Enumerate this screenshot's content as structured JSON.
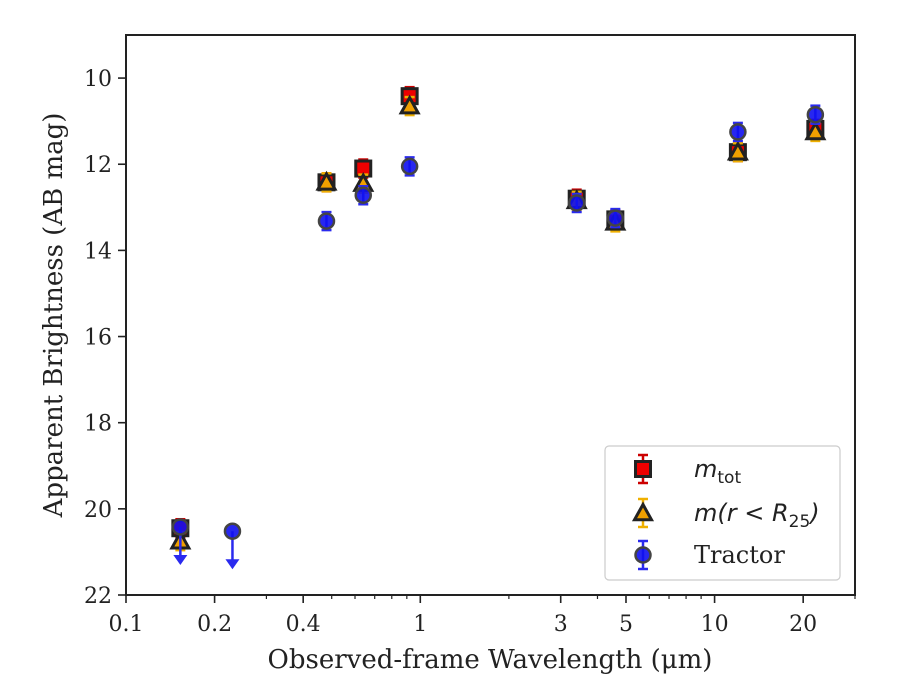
{
  "chart_data": {
    "type": "scatter",
    "xlabel": "Observed-frame Wavelength (μm)",
    "ylabel": "Apparent Brightness (AB mag)",
    "xscale": "log",
    "xlim": [
      0.1,
      30
    ],
    "ylim": [
      22,
      9.0
    ],
    "y_inverted": true,
    "grid": false,
    "legend_location": "lower-right",
    "x_ticks": [
      {
        "value": 0.1,
        "label": "0.1"
      },
      {
        "value": 0.2,
        "label": "0.2"
      },
      {
        "value": 0.4,
        "label": "0.4"
      },
      {
        "value": 1,
        "label": "1"
      },
      {
        "value": 3,
        "label": "3"
      },
      {
        "value": 5,
        "label": "5"
      },
      {
        "value": 10,
        "label": "10"
      },
      {
        "value": 20,
        "label": "20"
      }
    ],
    "y_ticks": [
      {
        "value": 10,
        "label": "10"
      },
      {
        "value": 12,
        "label": "12"
      },
      {
        "value": 14,
        "label": "14"
      },
      {
        "value": 16,
        "label": "16"
      },
      {
        "value": 18,
        "label": "18"
      },
      {
        "value": 20,
        "label": "20"
      },
      {
        "value": 22,
        "label": "22"
      }
    ],
    "series": [
      {
        "name": "m_tot",
        "legend_label": {
          "base": "m",
          "sub": "tot"
        },
        "marker": "square",
        "color": "#ee0000",
        "errcolor": "#cc0000",
        "points": [
          {
            "x": 0.153,
            "y": 20.45
          },
          {
            "x": 0.48,
            "y": 12.42
          },
          {
            "x": 0.64,
            "y": 12.1
          },
          {
            "x": 0.92,
            "y": 10.42
          },
          {
            "x": 3.4,
            "y": 12.8
          },
          {
            "x": 4.6,
            "y": 13.28
          },
          {
            "x": 12.0,
            "y": 11.72
          },
          {
            "x": 22.0,
            "y": 11.18
          }
        ]
      },
      {
        "name": "m(r<R_25)",
        "legend_label": {
          "base": "m(r < R",
          "sub": "25",
          "end": ")"
        },
        "marker": "triangle",
        "color": "#f0a000",
        "errcolor": "#f0b000",
        "points": [
          {
            "x": 0.153,
            "y": 20.75
          },
          {
            "x": 0.48,
            "y": 12.42
          },
          {
            "x": 0.64,
            "y": 12.45
          },
          {
            "x": 0.92,
            "y": 10.65
          },
          {
            "x": 3.4,
            "y": 12.85
          },
          {
            "x": 4.6,
            "y": 13.35
          },
          {
            "x": 12.0,
            "y": 11.72
          },
          {
            "x": 22.0,
            "y": 11.25
          }
        ]
      },
      {
        "name": "Tractor",
        "marker": "circle",
        "color": "#1010ee",
        "errcolor": "#2a2aee",
        "points": [
          {
            "x": 0.153,
            "y": 20.42,
            "upper_limit": true
          },
          {
            "x": 0.23,
            "y": 20.52,
            "upper_limit": true
          },
          {
            "x": 0.48,
            "y": 13.32
          },
          {
            "x": 0.64,
            "y": 12.72
          },
          {
            "x": 0.92,
            "y": 12.05
          },
          {
            "x": 3.4,
            "y": 12.9
          },
          {
            "x": 4.6,
            "y": 13.25
          },
          {
            "x": 12.0,
            "y": 11.25
          },
          {
            "x": 22.0,
            "y": 10.85
          }
        ]
      }
    ]
  }
}
